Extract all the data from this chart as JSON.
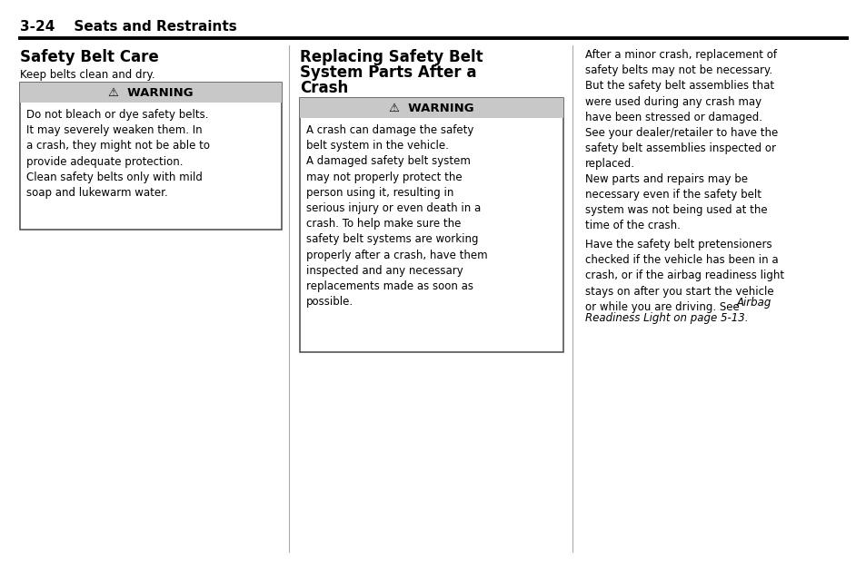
{
  "bg_color": "#ffffff",
  "header_text": "3-24    Seats and Restraints",
  "col1_title": "Safety Belt Care",
  "col1_subtitle": "Keep belts clean and dry.",
  "col1_warning_body": "Do not bleach or dye safety belts.\nIt may severely weaken them. In\na crash, they might not be able to\nprovide adequate protection.\nClean safety belts only with mild\nsoap and lukewarm water.",
  "col2_title_l1": "Replacing Safety Belt",
  "col2_title_l2": "System Parts After a",
  "col2_title_l3": "Crash",
  "col2_warning_body": "A crash can damage the safety\nbelt system in the vehicle.\nA damaged safety belt system\nmay not properly protect the\nperson using it, resulting in\nserious injury or even death in a\ncrash. To help make sure the\nsafety belt systems are working\nproperly after a crash, have them\ninspected and any necessary\nreplacements made as soon as\npossible.",
  "col3_para1": "After a minor crash, replacement of\nsafety belts may not be necessary.\nBut the safety belt assemblies that\nwere used during any crash may\nhave been stressed or damaged.\nSee your dealer/retailer to have the\nsafety belt assemblies inspected or\nreplaced.",
  "col3_para2": "New parts and repairs may be\nnecessary even if the safety belt\nsystem was not being used at the\ntime of the crash.",
  "col3_para3_normal": "Have the safety belt pretensioners\nchecked if the vehicle has been in a\ncrash, or if the airbag readiness light\nstays on after you start the vehicle\nor while you are driving. See ",
  "col3_para3_italic1": "Airbag",
  "col3_para3_italic2": "Readiness Light on page 5-13.",
  "warning_header": "⚠  WARNING",
  "warning_bg": "#c8c8c8",
  "warning_border": "#555555",
  "divider_color": "#000000",
  "col_divider_color": "#aaaaaa",
  "font_size_body": 8.5,
  "font_size_title": 12,
  "font_size_header": 11,
  "font_size_warning_hdr": 9.5
}
